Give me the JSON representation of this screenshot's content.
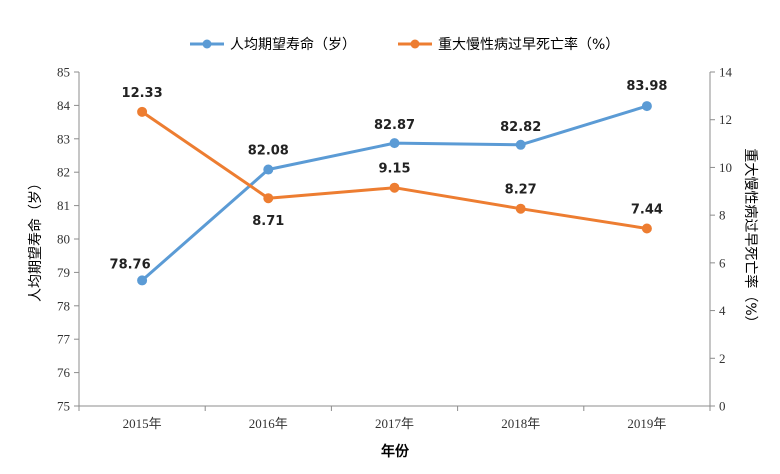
{
  "chart_data": {
    "type": "line",
    "categories": [
      "2015年",
      "2016年",
      "2017年",
      "2018年",
      "2019年"
    ],
    "xlabel": "年份",
    "ylabel_left": "人均期望寿命（岁）",
    "ylabel_right": "重大慢性病过早死亡率（%）",
    "ylim_left": [
      75,
      85
    ],
    "yticks_left": [
      "75",
      "76",
      "77",
      "78",
      "79",
      "80",
      "81",
      "82",
      "83",
      "84",
      "85"
    ],
    "ylim_right": [
      0,
      14
    ],
    "yticks_right": [
      "0",
      "2",
      "4",
      "6",
      "8",
      "10",
      "12",
      "14"
    ],
    "legend_position": "top",
    "grid": false,
    "series": [
      {
        "name": "人均期望寿命（岁）",
        "axis": "left",
        "color": "#5B9BD5",
        "values": [
          78.76,
          82.08,
          82.87,
          82.82,
          83.98
        ],
        "labels": [
          "78.76",
          "82.08",
          "82.87",
          "82.82",
          "83.98"
        ]
      },
      {
        "name": "重大慢性病过早死亡率（%）",
        "axis": "right",
        "color": "#ED7D31",
        "values": [
          12.33,
          8.71,
          9.15,
          8.27,
          7.44
        ],
        "labels": [
          "12.33",
          "8.71",
          "9.15",
          "8.27",
          "7.44"
        ]
      }
    ]
  }
}
